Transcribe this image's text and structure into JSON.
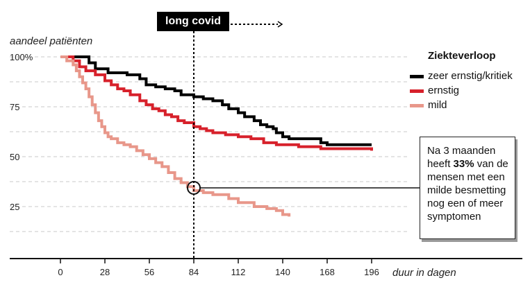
{
  "chart_data": {
    "type": "line",
    "step": true,
    "ylabel": "aandeel patiënten",
    "xlabel": "duur in dagen",
    "x_ticks": [
      0,
      28,
      56,
      84,
      112,
      140,
      168,
      196
    ],
    "y_ticks": [
      100,
      75,
      50,
      25
    ],
    "y_tick_labels": [
      "100%",
      "75",
      "50",
      "25"
    ],
    "xlim": [
      0,
      196
    ],
    "ylim": [
      0,
      100
    ],
    "grid": "horizontal dashed",
    "legend_title": "Ziekteverloop",
    "legend_position": "right",
    "annotation_banner": "long covid",
    "annotation_x": 84,
    "marker_point": {
      "x": 84,
      "y": 33
    },
    "callout_parts": [
      "Na 3 maanden heeft ",
      "33%",
      " van de mensen met een milde besmetting nog een of meer symptomen"
    ],
    "series": [
      {
        "name": "zeer ernstig/kritiek",
        "color": "#000000",
        "x": [
          0,
          8,
          18,
          22,
          30,
          42,
          50,
          54,
          60,
          66,
          72,
          76,
          84,
          90,
          96,
          102,
          106,
          112,
          116,
          122,
          126,
          130,
          134,
          136,
          140,
          144,
          150,
          164,
          168,
          196
        ],
        "y": [
          100,
          100,
          97,
          94,
          92,
          91,
          89,
          86,
          85,
          84,
          83,
          81,
          80,
          79,
          78,
          76,
          74,
          72,
          70,
          68,
          66,
          65,
          64,
          62,
          60,
          59,
          59,
          57,
          56,
          56
        ]
      },
      {
        "name": "ernstig",
        "color": "#d7212b",
        "x": [
          0,
          8,
          12,
          16,
          22,
          28,
          32,
          36,
          40,
          44,
          50,
          54,
          58,
          62,
          66,
          70,
          74,
          78,
          84,
          88,
          92,
          96,
          104,
          112,
          120,
          128,
          136,
          150,
          164,
          196
        ],
        "y": [
          100,
          98,
          95,
          93,
          91,
          88,
          86,
          84,
          83,
          81,
          78,
          76,
          74,
          73,
          71,
          70,
          68,
          67,
          65,
          64,
          63,
          62,
          61,
          60,
          59,
          57,
          56,
          55,
          54,
          53
        ]
      },
      {
        "name": "mild",
        "color": "#e8978a",
        "x": [
          0,
          4,
          8,
          10,
          12,
          14,
          16,
          18,
          20,
          22,
          24,
          26,
          28,
          30,
          32,
          36,
          40,
          44,
          48,
          52,
          56,
          60,
          64,
          68,
          72,
          76,
          80,
          84,
          90,
          96,
          102,
          106,
          112,
          122,
          130,
          136,
          140,
          144
        ],
        "y": [
          100,
          98,
          96,
          93,
          90,
          87,
          84,
          80,
          76,
          72,
          68,
          65,
          62,
          60,
          59,
          57,
          56,
          55,
          53,
          51,
          49,
          47,
          45,
          42,
          39,
          37,
          35,
          33,
          32,
          31,
          31,
          29,
          27,
          25,
          24,
          23,
          21,
          20
        ]
      }
    ]
  }
}
